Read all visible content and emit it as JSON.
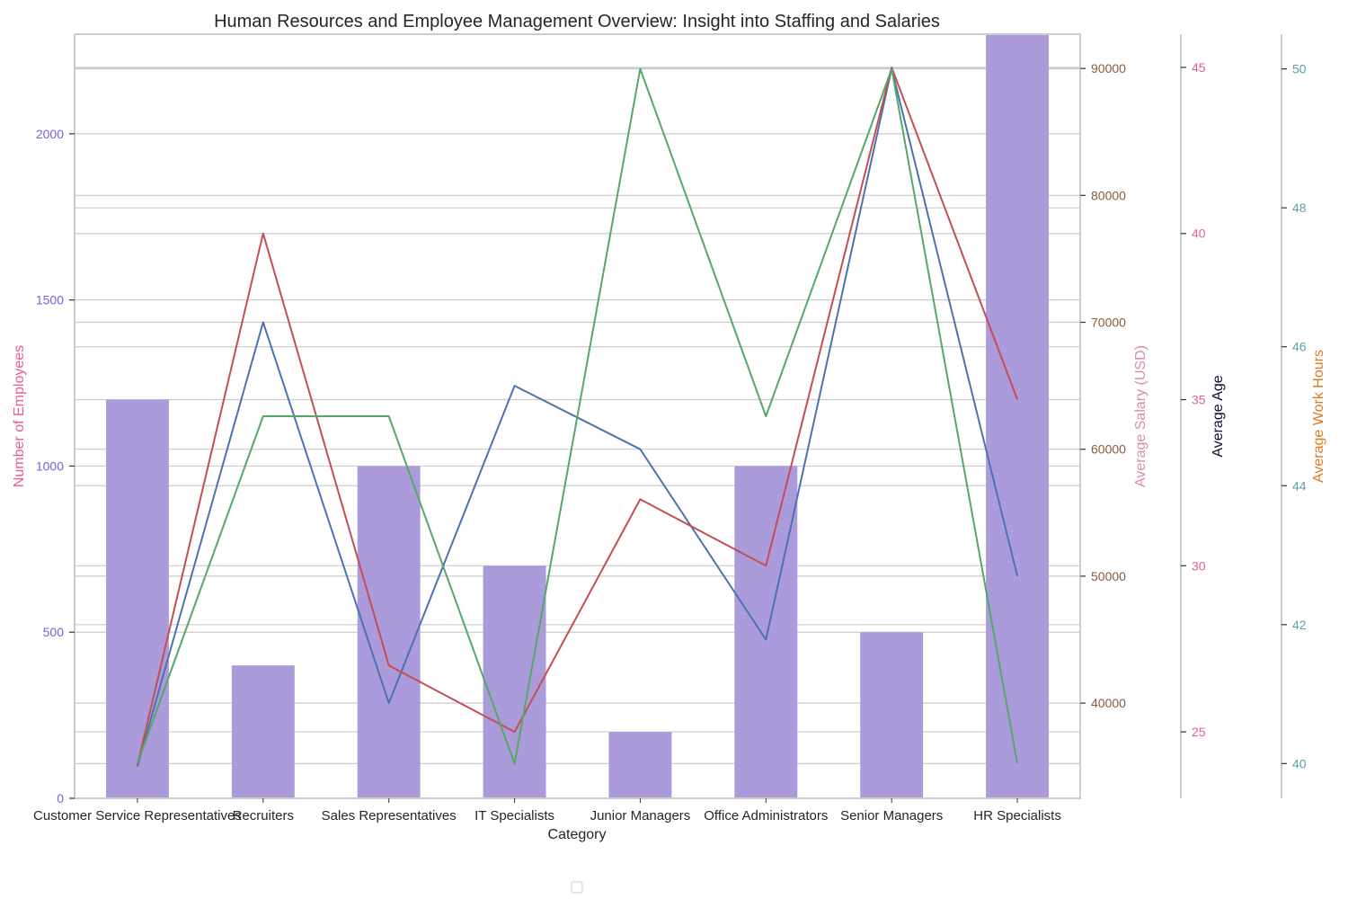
{
  "chart_data": {
    "type": "bar",
    "title": "Human Resources and Employee Management Overview: Insight into Staffing and Salaries",
    "xlabel": "Category",
    "categories": [
      "Customer Service Representatives",
      "Recruiters",
      "Sales Representatives",
      "IT Specialists",
      "Junior Managers",
      "Office Administrators",
      "Senior Managers",
      "HR Specialists"
    ],
    "grid": true,
    "legend": "empty, bottom-center",
    "axes": [
      {
        "id": "employees",
        "label": "Number of Employees",
        "label_color": "#e8608a",
        "tick_color": "#7b5fe0",
        "ylim": [
          0,
          2300
        ],
        "ticks": [
          0,
          500,
          1000,
          1500,
          2000
        ]
      },
      {
        "id": "salary",
        "label": "Average Salary (USD)",
        "label_color": "#d98ca8",
        "tick_color": "#8a5a3a",
        "ylim": [
          32500,
          92700
        ],
        "ticks": [
          40000,
          50000,
          60000,
          70000,
          80000,
          90000
        ]
      },
      {
        "id": "age",
        "label": "Average Age",
        "label_color": "#1a0a3a",
        "tick_color": "#e8608a",
        "ylim": [
          23.0,
          46.0
        ],
        "ticks": [
          25,
          30,
          35,
          40,
          45
        ]
      },
      {
        "id": "hours",
        "label": "Average Work Hours",
        "label_color": "#e07a20",
        "tick_color": "#5aa0a8",
        "ylim": [
          39.5,
          50.5
        ],
        "ticks": [
          40,
          42,
          44,
          46,
          48,
          50
        ]
      }
    ],
    "series": [
      {
        "axis": "employees",
        "kind": "bar",
        "color": "#ab9bdb",
        "values": [
          1200,
          400,
          1000,
          700,
          200,
          1000,
          500,
          2300
        ]
      },
      {
        "axis": "salary",
        "kind": "line",
        "color": "#4c72b0",
        "values": [
          35000,
          70000,
          40000,
          65000,
          60000,
          45000,
          90000,
          50000
        ]
      },
      {
        "axis": "age",
        "kind": "line",
        "color": "#c44e52",
        "values": [
          24,
          40,
          27,
          25,
          32,
          30,
          45,
          35
        ]
      },
      {
        "axis": "hours",
        "kind": "line",
        "color": "#55a868",
        "values": [
          40,
          45,
          45,
          40,
          50,
          45,
          50,
          40
        ]
      }
    ]
  }
}
